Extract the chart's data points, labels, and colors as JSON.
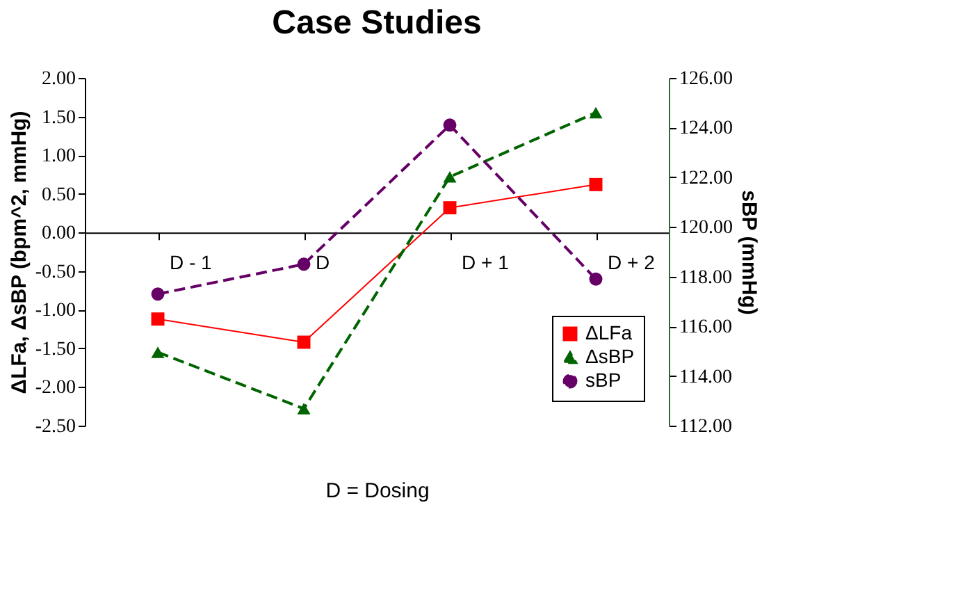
{
  "chart_data": {
    "type": "line",
    "title": "Case Studies",
    "xlabel": "D = Dosing",
    "ylabel": "ΔLFa, ΔsBP (bpm^2, mmHg)",
    "y2label": "sBP (mmHg)",
    "categories": [
      "D - 1",
      "D",
      "D + 1",
      "D + 2"
    ],
    "series": [
      {
        "name": "ΔLFa",
        "color": "#ff0000",
        "marker": "square",
        "line_style": "solid",
        "values": [
          -1.12,
          -1.42,
          0.32,
          0.62
        ]
      },
      {
        "name": "ΔsBP",
        "color": "#006400",
        "marker": "triangle",
        "line_style": "dashed",
        "values": [
          -1.55,
          -2.28,
          0.72,
          1.55
        ]
      },
      {
        "name": "sBP",
        "color": "#660066",
        "marker": "circle",
        "line_style": "dashed",
        "axis": "y2",
        "values": [
          117.3,
          118.5,
          124.1,
          117.9
        ]
      }
    ],
    "ylim": [
      -2.5,
      2.0
    ],
    "yticks": [
      {
        "value": -2.5,
        "label": "-2.50"
      },
      {
        "value": -2.0,
        "label": "-2.00"
      },
      {
        "value": -1.5,
        "label": "-1.50"
      },
      {
        "value": -1.0,
        "label": "-1.00"
      },
      {
        "value": -0.5,
        "label": "-0.50"
      },
      {
        "value": 0,
        "label": "0.00"
      },
      {
        "value": 0.5,
        "label": "0.50"
      },
      {
        "value": 1.0,
        "label": "1.00"
      },
      {
        "value": 1.5,
        "label": "1.50"
      },
      {
        "value": 2.0,
        "label": "2.00"
      }
    ],
    "y2lim": [
      112,
      126
    ],
    "y2ticks": [
      {
        "value": 112,
        "label": "112.00"
      },
      {
        "value": 114,
        "label": "114.00"
      },
      {
        "value": 116,
        "label": "116.00"
      },
      {
        "value": 118,
        "label": "118.00"
      },
      {
        "value": 120,
        "label": "120.00"
      },
      {
        "value": 122,
        "label": "122.00"
      },
      {
        "value": 124,
        "label": "124.00"
      },
      {
        "value": 126,
        "label": "126.00"
      }
    ],
    "grid": false,
    "legend": "bottom right"
  }
}
